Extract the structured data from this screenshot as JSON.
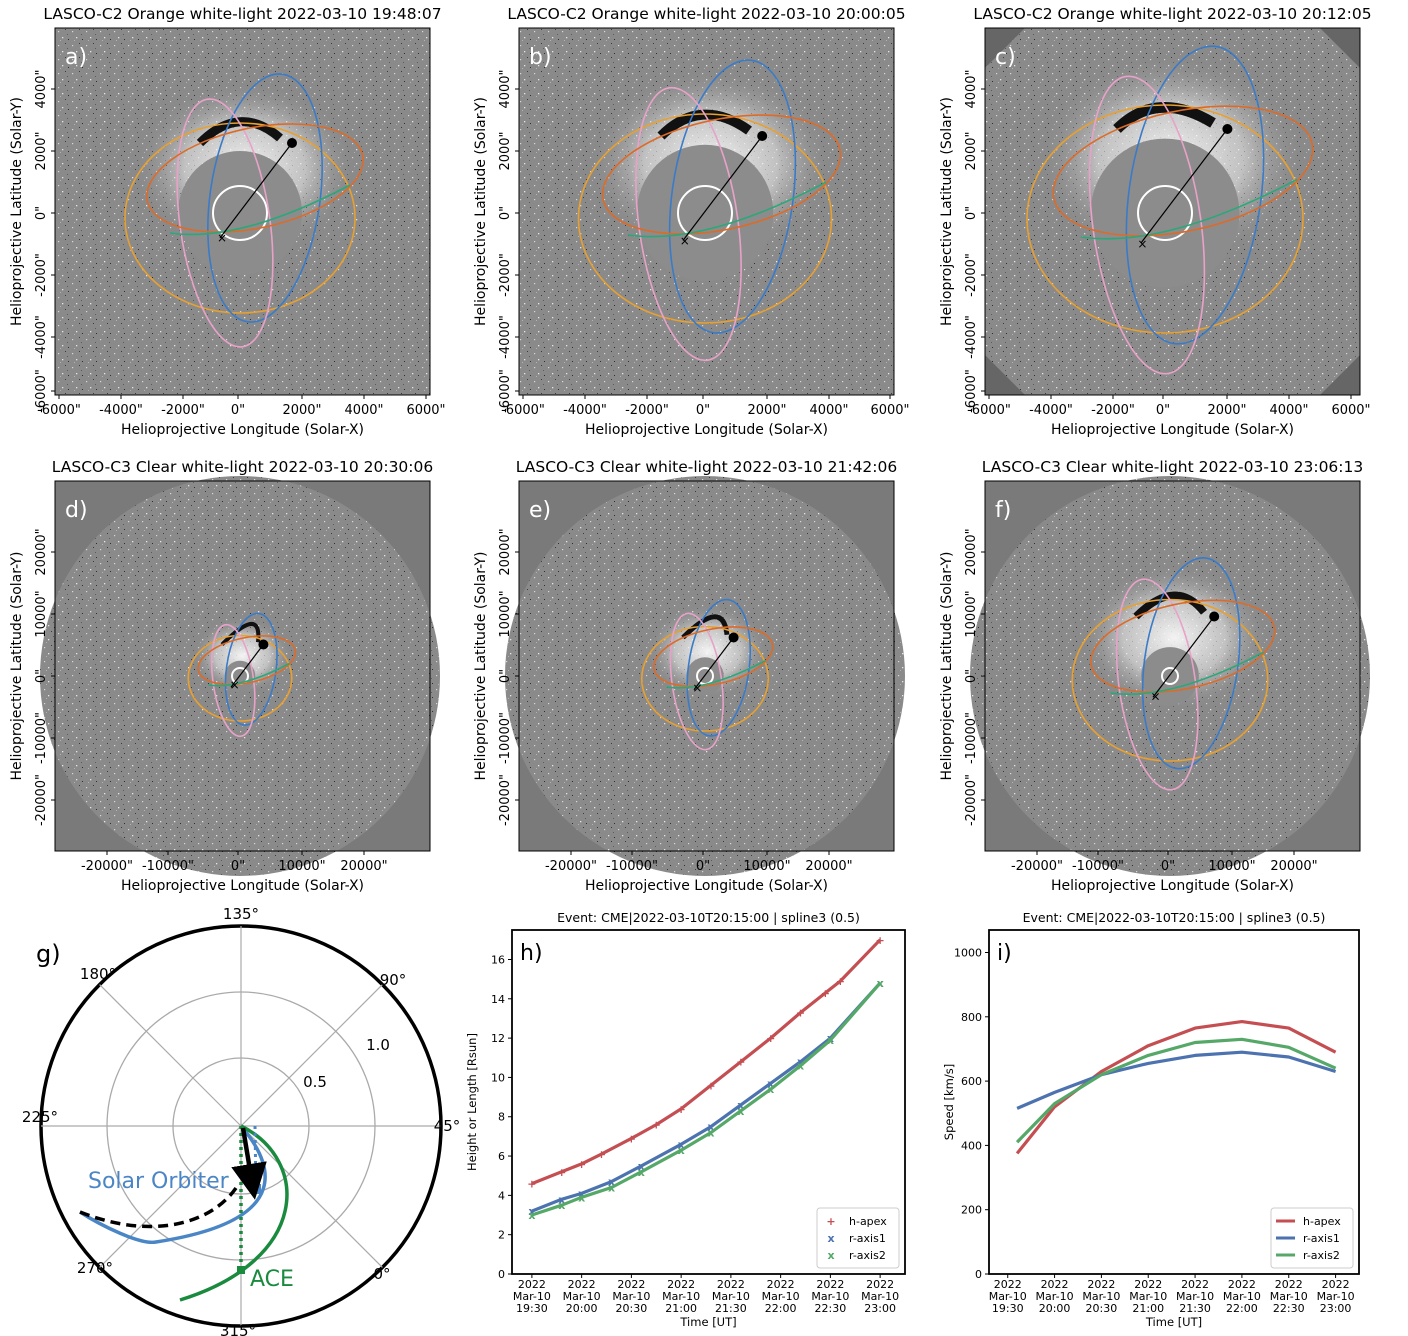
{
  "panels": [
    {
      "id": "a",
      "letter": "a)",
      "title": "LASCO-C2 Orange white-light 2022-03-10 19:48:07"
    },
    {
      "id": "b",
      "letter": "b)",
      "title": "LASCO-C2 Orange white-light 2022-03-10 20:00:05"
    },
    {
      "id": "c",
      "letter": "c)",
      "title": "LASCO-C2 Orange white-light 2022-03-10 20:12:05"
    },
    {
      "id": "d",
      "letter": "d)",
      "title": "LASCO-C3 Clear white-light 2022-03-10 20:30:06"
    },
    {
      "id": "e",
      "letter": "e)",
      "title": "LASCO-C3 Clear white-light 2022-03-10 21:42:06"
    },
    {
      "id": "f",
      "letter": "f)",
      "title": "LASCO-C3 Clear white-light 2022-03-10 23:06:13"
    }
  ],
  "image_axes": {
    "xlabel": "Helioprojective Longitude (Solar-X)",
    "ylabel": "Helioprojective Latitude (Solar-Y)",
    "c2_xticks": [
      "-6000\"",
      "-4000\"",
      "-2000\"",
      "0\"",
      "2000\"",
      "4000\"",
      "6000\""
    ],
    "c2_yticks": [
      "4000\"",
      "2000\"",
      "0\"",
      "-2000\"",
      "-4000\"",
      "-6000\""
    ],
    "c3_xticks": [
      "-20000\"",
      "-10000\"",
      "0\"",
      "10000\"",
      "20000\""
    ],
    "c3_yticks": [
      "20000\"",
      "10000\"",
      "0\"",
      "-10000\"",
      "-20000\""
    ]
  },
  "polar": {
    "letter": "g)",
    "angle_labels": [
      "135°",
      "90°",
      "45°",
      "0°",
      "315°",
      "270°",
      "225°",
      "180°"
    ],
    "radial_labels": [
      "1.0",
      "0.5"
    ],
    "labels": {
      "solar_orbiter": "Solar Orbiter",
      "ace": "ACE"
    },
    "colors": {
      "solar_orbiter": "#4a86c6",
      "ace": "#1a8a3e"
    }
  },
  "chart_data": [
    {
      "type": "line",
      "panel": "h",
      "letter": "h)",
      "title": "Event: CME|2022-03-10T20:15:00 | spline3 (0.5)",
      "xlabel": "Time [UT]",
      "ylabel": "Height or Length [Rsun]",
      "x_ticks": [
        "19:30",
        "20:00",
        "20:30",
        "21:00",
        "21:30",
        "22:00",
        "22:30",
        "23:00"
      ],
      "x_tick_prefix": [
        "2022",
        "Mar-10"
      ],
      "ylim": [
        0,
        17.5
      ],
      "yticks": [
        0,
        2,
        4,
        6,
        8,
        10,
        12,
        14,
        16
      ],
      "legend": "bottom-right",
      "series": [
        {
          "name": "h-apex",
          "color": "#c44e52",
          "marker": "+",
          "x": [
            19.5,
            19.8,
            20.0,
            20.2,
            20.5,
            20.75,
            21.0,
            21.3,
            21.6,
            21.9,
            22.2,
            22.45,
            22.6,
            23.0
          ],
          "values": [
            4.6,
            5.2,
            5.6,
            6.1,
            6.9,
            7.6,
            8.4,
            9.6,
            10.8,
            12.0,
            13.3,
            14.3,
            14.9,
            17.0
          ]
        },
        {
          "name": "r-axis1",
          "color": "#4c72b0",
          "marker": "x",
          "x": [
            19.5,
            19.8,
            20.0,
            20.3,
            20.6,
            21.0,
            21.3,
            21.6,
            21.9,
            22.2,
            22.5,
            23.0
          ],
          "values": [
            3.2,
            3.8,
            4.1,
            4.7,
            5.5,
            6.6,
            7.5,
            8.6,
            9.7,
            10.8,
            12.0,
            14.8
          ]
        },
        {
          "name": "r-axis2",
          "color": "#55a868",
          "marker": "x",
          "x": [
            19.5,
            19.8,
            20.0,
            20.3,
            20.6,
            21.0,
            21.3,
            21.6,
            21.9,
            22.2,
            22.5,
            23.0
          ],
          "values": [
            3.0,
            3.5,
            3.9,
            4.4,
            5.2,
            6.3,
            7.2,
            8.3,
            9.4,
            10.6,
            11.9,
            14.8
          ]
        }
      ]
    },
    {
      "type": "line",
      "panel": "i",
      "letter": "i)",
      "title": "Event: CME|2022-03-10T20:15:00 | spline3 (0.5)",
      "xlabel": "Time [UT]",
      "ylabel": "Speed [km/s]",
      "x_ticks": [
        "19:30",
        "20:00",
        "20:30",
        "21:00",
        "21:30",
        "22:00",
        "22:30",
        "23:00"
      ],
      "x_tick_prefix": [
        "2022",
        "Mar-10"
      ],
      "ylim": [
        0,
        1070
      ],
      "yticks": [
        0,
        200,
        400,
        600,
        800,
        1000
      ],
      "legend": "bottom-right",
      "series": [
        {
          "name": "h-apex",
          "color": "#c44e52",
          "x": [
            19.6,
            20.0,
            20.5,
            21.0,
            21.5,
            22.0,
            22.5,
            23.0
          ],
          "values": [
            375,
            520,
            630,
            710,
            765,
            785,
            765,
            690
          ]
        },
        {
          "name": "r-axis1",
          "color": "#4c72b0",
          "x": [
            19.6,
            20.0,
            20.5,
            21.0,
            21.5,
            22.0,
            22.5,
            23.0
          ],
          "values": [
            515,
            565,
            620,
            655,
            680,
            690,
            675,
            630
          ]
        },
        {
          "name": "r-axis2",
          "color": "#55a868",
          "x": [
            19.6,
            20.0,
            20.5,
            21.0,
            21.5,
            22.0,
            22.5,
            23.0
          ],
          "values": [
            410,
            530,
            620,
            680,
            720,
            730,
            705,
            640
          ]
        }
      ]
    }
  ]
}
